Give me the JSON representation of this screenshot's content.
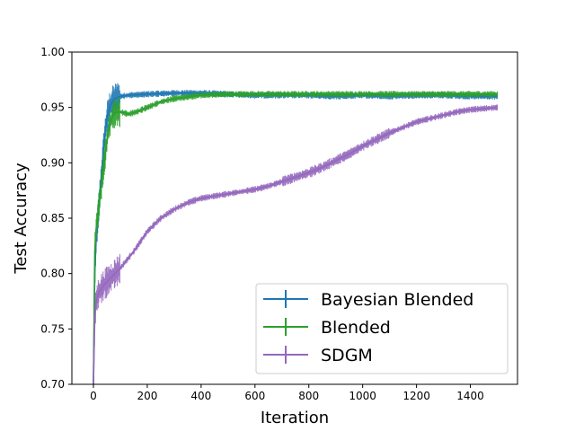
{
  "chart_data": {
    "type": "line",
    "title": "",
    "xlabel": "Iteration",
    "ylabel": "Test Accuracy",
    "xlim": [
      -80,
      1575
    ],
    "ylim": [
      0.7,
      1.0
    ],
    "xticks": [
      0,
      200,
      400,
      600,
      800,
      1000,
      1200,
      1400
    ],
    "xtick_labels": [
      "0",
      "200",
      "400",
      "600",
      "800",
      "1000",
      "1200",
      "1400"
    ],
    "yticks": [
      0.7,
      0.75,
      0.8,
      0.85,
      0.9,
      0.95,
      1.0
    ],
    "ytick_labels": [
      "0.70",
      "0.75",
      "0.80",
      "0.85",
      "0.90",
      "0.95",
      "1.00"
    ],
    "grid": false,
    "legend_position": "lower-right",
    "error_bars": true,
    "series": [
      {
        "name": "Bayesian Blended",
        "color": "#1f77b4",
        "x": [
          0,
          5,
          10,
          20,
          30,
          40,
          50,
          60,
          70,
          80,
          100,
          130,
          200,
          300,
          400,
          500,
          600,
          700,
          800,
          900,
          1000,
          1100,
          1200,
          1300,
          1400,
          1500
        ],
        "y": [
          0.7,
          0.8,
          0.83,
          0.86,
          0.89,
          0.92,
          0.94,
          0.95,
          0.955,
          0.958,
          0.96,
          0.961,
          0.962,
          0.963,
          0.963,
          0.962,
          0.961,
          0.961,
          0.961,
          0.96,
          0.961,
          0.96,
          0.961,
          0.961,
          0.96,
          0.96
        ]
      },
      {
        "name": "Blended",
        "color": "#2ca02c",
        "x": [
          0,
          5,
          10,
          20,
          30,
          40,
          50,
          60,
          70,
          80,
          100,
          130,
          160,
          200,
          250,
          300,
          400,
          500,
          600,
          700,
          800,
          900,
          1000,
          1100,
          1200,
          1300,
          1400,
          1500
        ],
        "y": [
          0.7,
          0.82,
          0.84,
          0.86,
          0.88,
          0.9,
          0.92,
          0.935,
          0.941,
          0.945,
          0.946,
          0.944,
          0.946,
          0.95,
          0.955,
          0.958,
          0.961,
          0.962,
          0.962,
          0.962,
          0.962,
          0.962,
          0.962,
          0.962,
          0.962,
          0.962,
          0.962,
          0.962
        ]
      },
      {
        "name": "SDGM",
        "color": "#9467bd",
        "x": [
          0,
          5,
          10,
          20,
          40,
          60,
          80,
          100,
          150,
          200,
          250,
          300,
          350,
          400,
          450,
          500,
          550,
          600,
          650,
          700,
          750,
          800,
          850,
          900,
          950,
          1000,
          1050,
          1100,
          1150,
          1200,
          1250,
          1300,
          1350,
          1400,
          1450,
          1500
        ],
        "y": [
          0.7,
          0.76,
          0.775,
          0.783,
          0.79,
          0.795,
          0.8,
          0.805,
          0.82,
          0.838,
          0.85,
          0.858,
          0.864,
          0.868,
          0.87,
          0.872,
          0.874,
          0.876,
          0.879,
          0.883,
          0.887,
          0.891,
          0.896,
          0.902,
          0.908,
          0.915,
          0.921,
          0.927,
          0.932,
          0.937,
          0.94,
          0.943,
          0.946,
          0.948,
          0.949,
          0.95
        ]
      }
    ]
  }
}
